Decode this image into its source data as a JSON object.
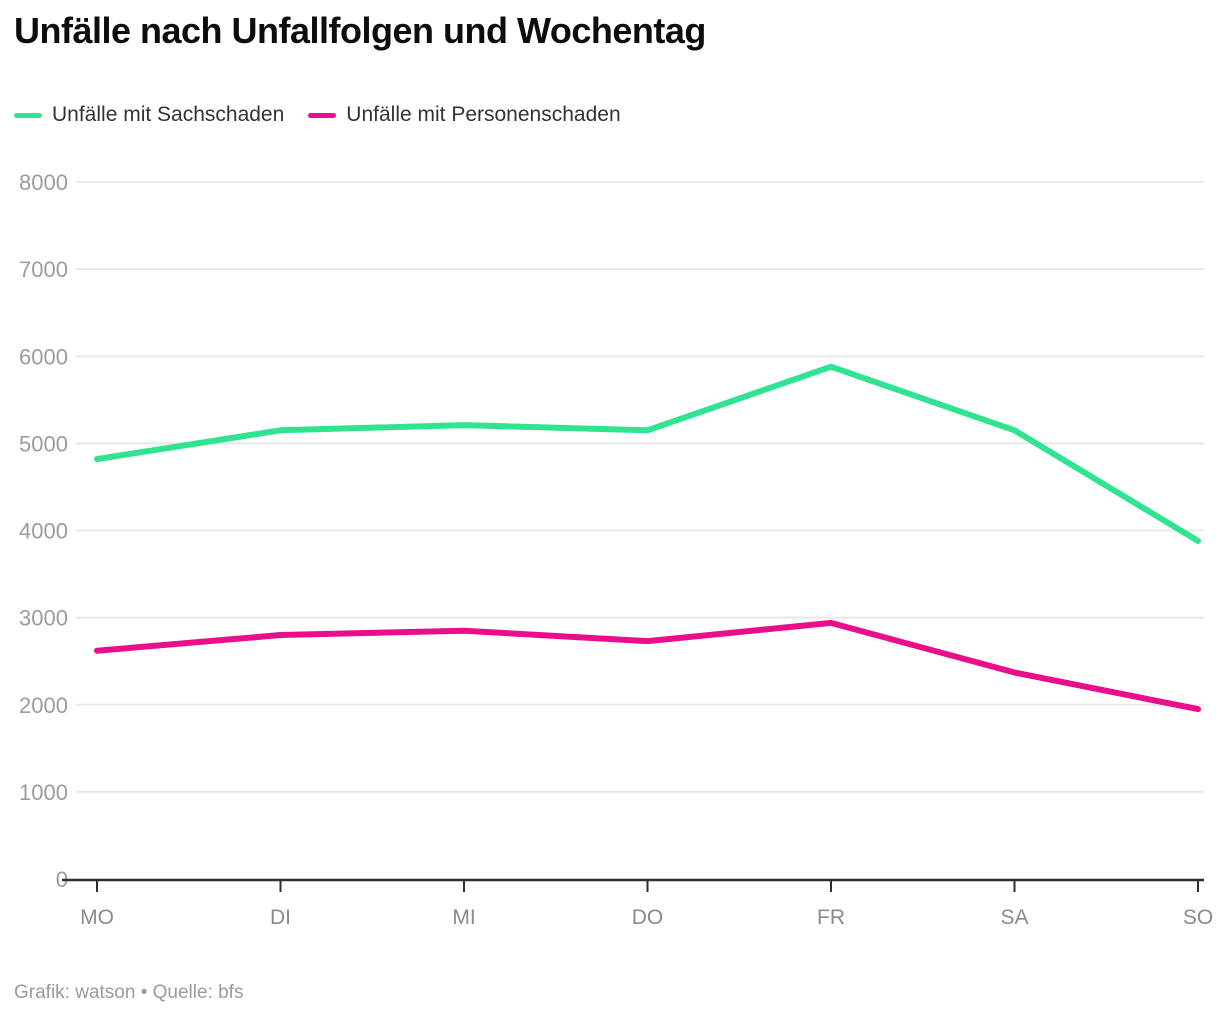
{
  "title": "Unfälle nach Unfallfolgen und Wochentag",
  "source_caption": "Grafik: watson • Quelle: bfs",
  "chart_data": {
    "type": "line",
    "title": "Unfälle nach Unfallfolgen und Wochentag",
    "categories": [
      "MO",
      "DI",
      "MI",
      "DO",
      "FR",
      "SA",
      "SO"
    ],
    "series": [
      {
        "name": "Unfälle mit Sachschaden",
        "color": "#2fe390",
        "values": [
          4820,
          5150,
          5210,
          5150,
          5880,
          5150,
          3880
        ]
      },
      {
        "name": "Unfälle mit Personenschaden",
        "color": "#ea0e8c",
        "values": [
          2620,
          2800,
          2850,
          2730,
          2940,
          2370,
          1950
        ]
      }
    ],
    "xlabel": "",
    "ylabel": "",
    "ylim": [
      0,
      8000
    ],
    "y_ticks": [
      0,
      1000,
      2000,
      3000,
      4000,
      5000,
      6000,
      7000,
      8000
    ],
    "grid": true,
    "legend_position": "top"
  },
  "colors": {
    "background": "#ffffff",
    "title": "#0d0d0d",
    "legend_text": "#333333",
    "grid": "#e8e8e8",
    "axis": "#2e2e2e",
    "y_tick_label": "#9c9c9c",
    "x_tick_label": "#8a8a8a",
    "source": "#9a9a9a"
  }
}
